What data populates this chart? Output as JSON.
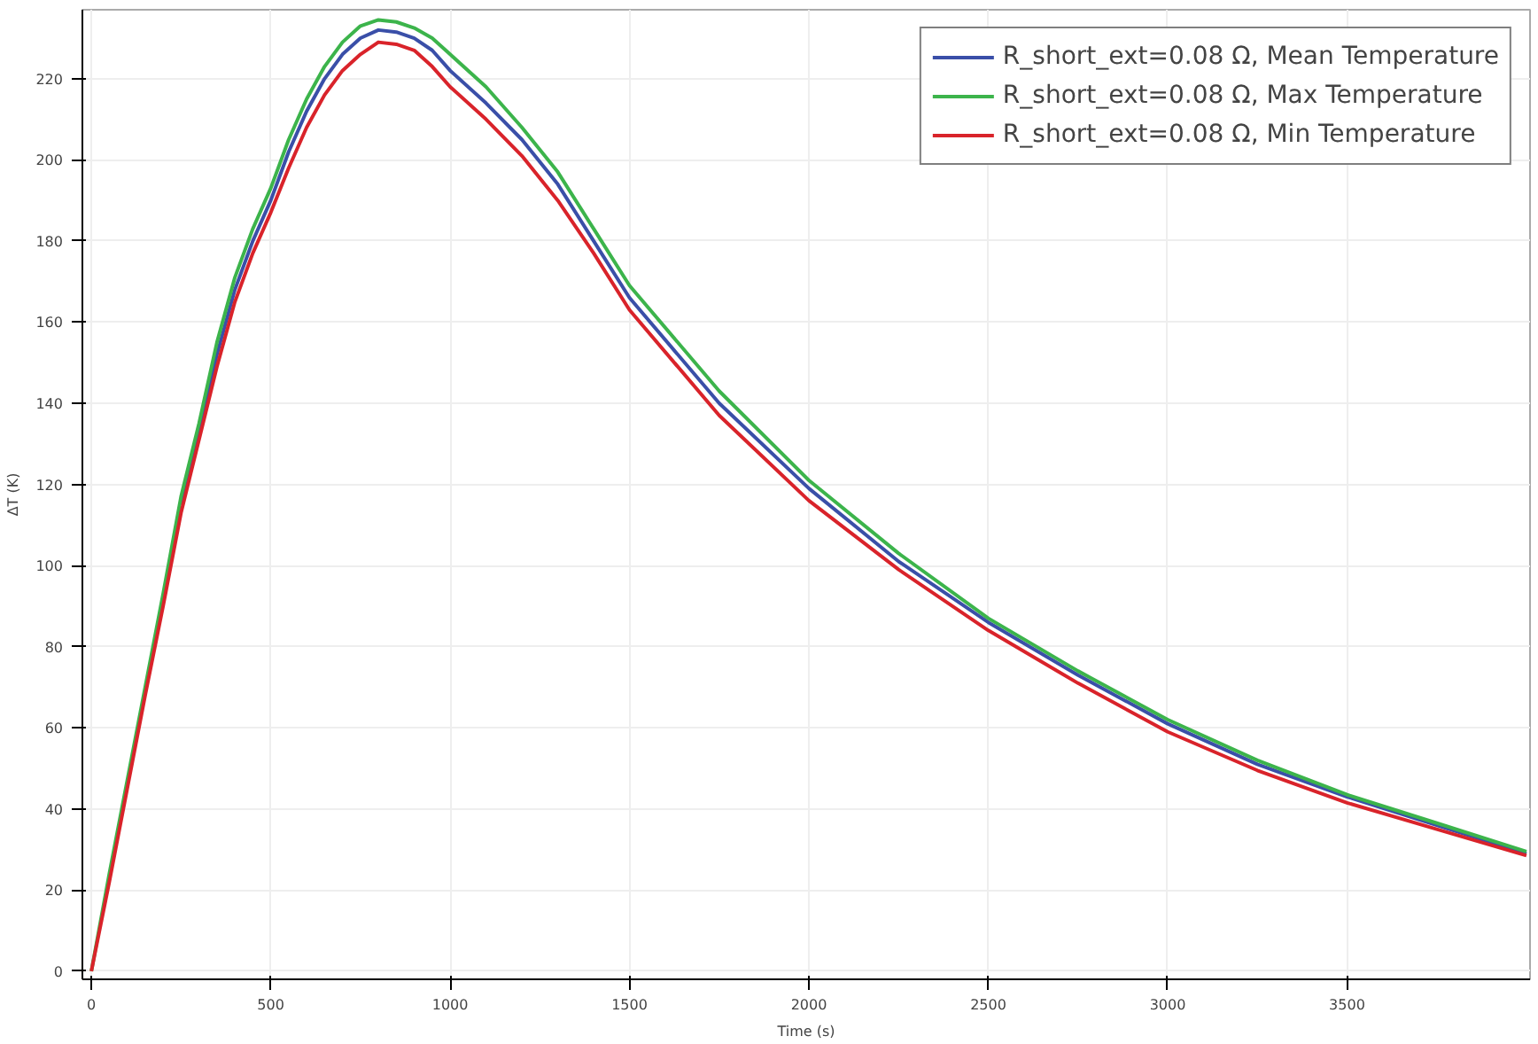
{
  "chart_data": {
    "type": "line",
    "xlabel": "Time (s)",
    "ylabel": "ΔT (K)",
    "x": [
      0,
      50,
      100,
      150,
      200,
      250,
      300,
      350,
      400,
      450,
      500,
      550,
      600,
      650,
      700,
      750,
      800,
      850,
      900,
      950,
      1000,
      1100,
      1200,
      1300,
      1400,
      1500,
      1750,
      2000,
      2250,
      2500,
      2750,
      3000,
      3250,
      3500,
      3750,
      4000
    ],
    "series": [
      {
        "name": "R_short_ext=0.08 Ω, Mean Temperature",
        "color": "#3a4fa8",
        "values": [
          null,
          null,
          null,
          null,
          null,
          115,
          133,
          152,
          168,
          180,
          190,
          202,
          212,
          220,
          226,
          230,
          232,
          231.5,
          230,
          227,
          222,
          214,
          205,
          194,
          180,
          166,
          140,
          119,
          101,
          86,
          73,
          61,
          51,
          43,
          36,
          29
        ]
      },
      {
        "name": "R_short_ext=0.08 Ω, Max Temperature",
        "color": "#3cb44b",
        "values": [
          0,
          24,
          47,
          70,
          93,
          117,
          135,
          155,
          171,
          183,
          193,
          205,
          215,
          223,
          229,
          233,
          234.5,
          234,
          232.5,
          230,
          226,
          218,
          208,
          197,
          183,
          169,
          143,
          121,
          103,
          87,
          74,
          62,
          52,
          43.5,
          36.5,
          29.5
        ]
      },
      {
        "name": "R_short_ext=0.08 Ω, Min Temperature",
        "color": "#d9232a",
        "values": [
          0,
          22,
          45,
          68,
          90,
          113,
          131,
          149,
          165,
          177,
          187,
          198,
          208,
          216,
          222,
          226,
          229,
          228.5,
          227,
          223,
          218,
          210,
          201,
          190,
          177,
          163,
          137,
          116,
          99,
          84,
          71,
          59,
          49.5,
          41.5,
          35,
          28.5
        ]
      }
    ],
    "xlim": [
      -25,
      4010
    ],
    "ylim": [
      -2,
      237
    ],
    "xticks": [
      0,
      500,
      1000,
      1500,
      2000,
      2500,
      3000,
      3500
    ],
    "yticks": [
      0,
      20,
      40,
      60,
      80,
      100,
      120,
      140,
      160,
      180,
      200,
      220
    ],
    "grid": true,
    "legend": "top right",
    "line_style": "solid",
    "marker": "none"
  }
}
